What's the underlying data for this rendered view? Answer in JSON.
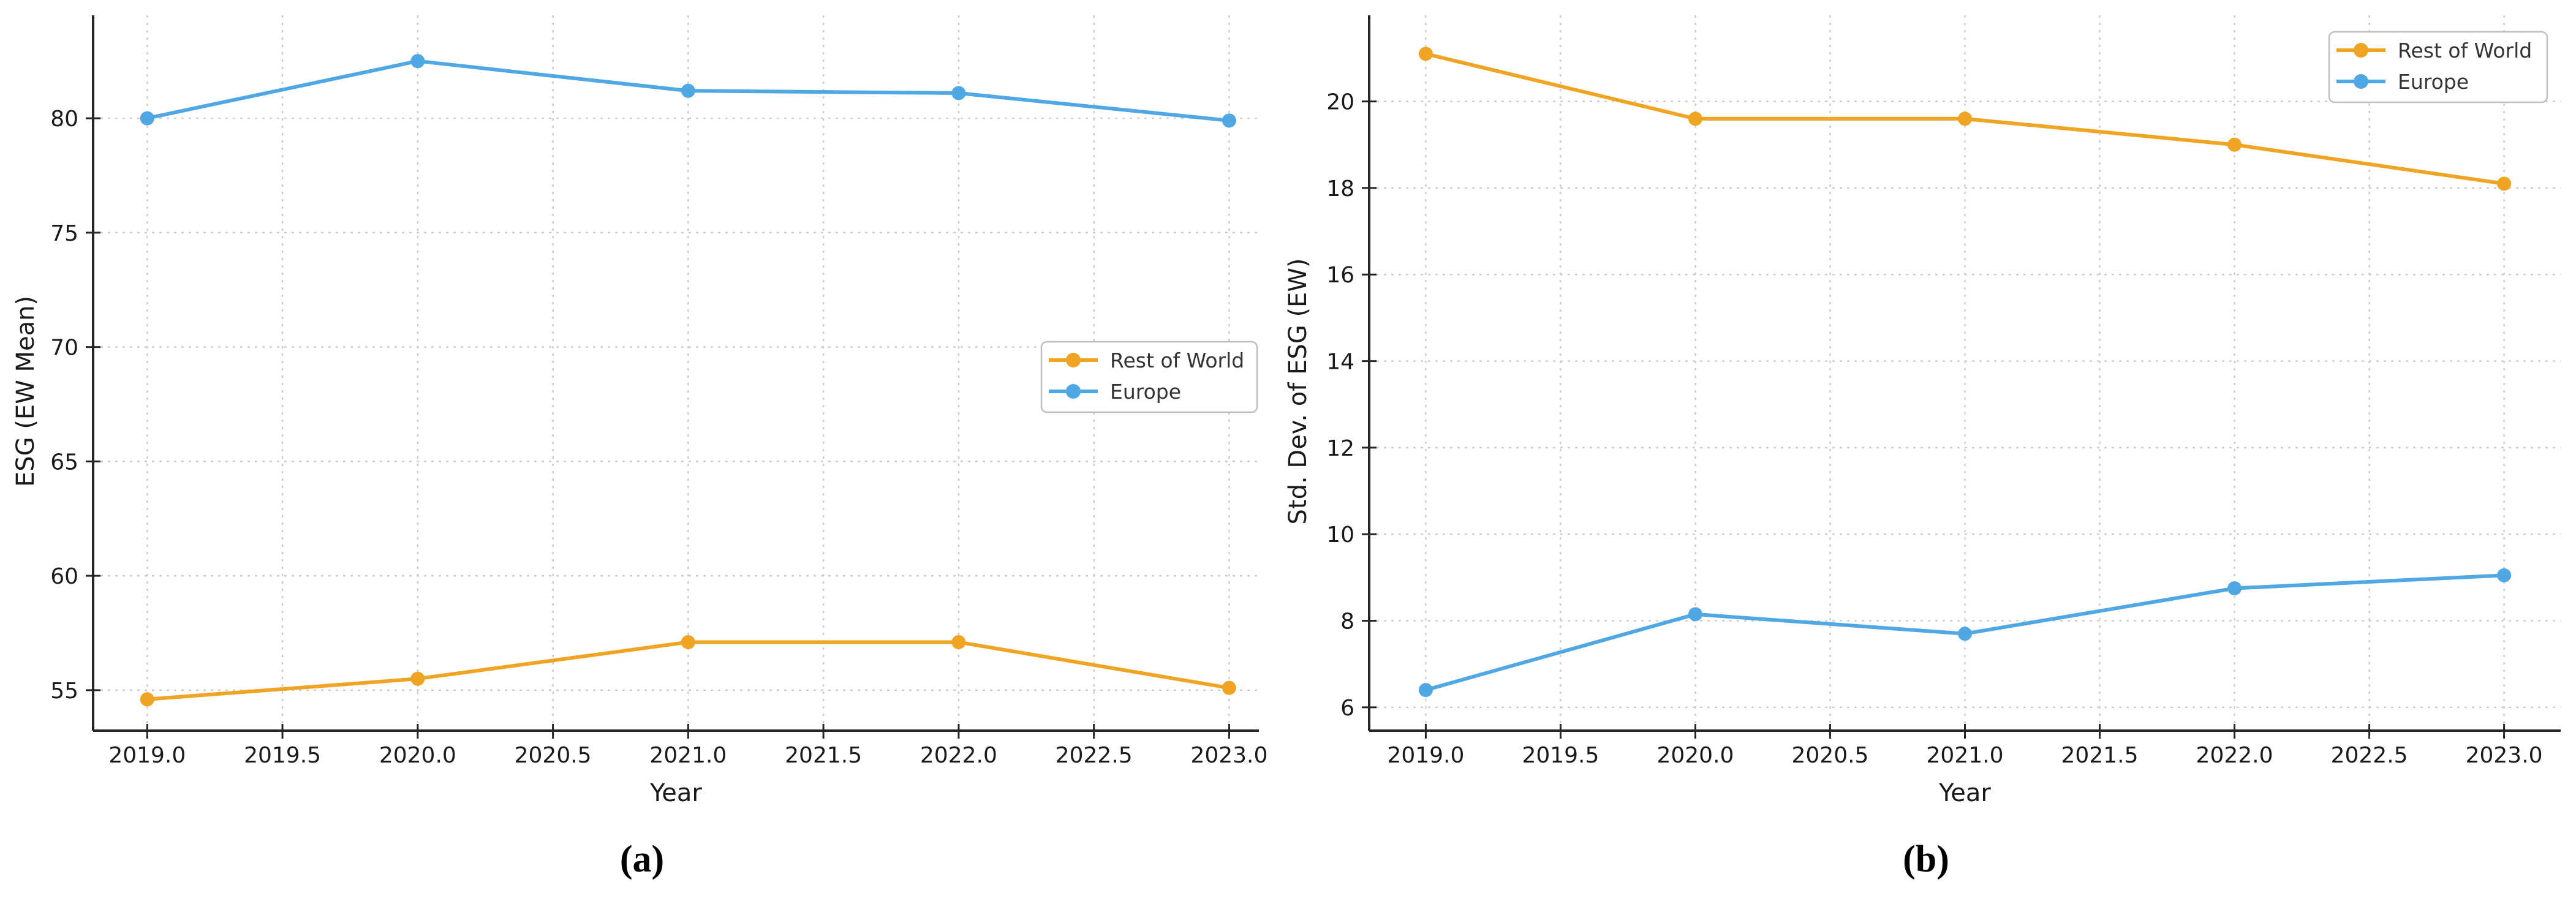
{
  "figure": {
    "background": "#ffffff",
    "captions": {
      "a": "(a)",
      "b": "(b)"
    }
  },
  "colors": {
    "rest_of_world": "#EFA423",
    "europe": "#4FA7E3",
    "grid": "#cccccc",
    "spine": "#262626",
    "tick_label": "#1a1a1a",
    "axis_label": "#1a1a1a",
    "legend_text": "#333333",
    "legend_border": "#bfbfbf",
    "legend_fill": "#ffffff"
  },
  "chart_data": [
    {
      "id": "a",
      "type": "line",
      "title": "",
      "xlabel": "Year",
      "ylabel": "ESG (EW Mean)",
      "caption": "(a)",
      "grid": true,
      "x": [
        2019,
        2020,
        2021,
        2022,
        2023
      ],
      "xticks": [
        2019.0,
        2019.5,
        2020.0,
        2020.5,
        2021.0,
        2021.5,
        2022.0,
        2022.5,
        2023.0
      ],
      "xtick_labels": [
        "2019.0",
        "2019.5",
        "2020.0",
        "2020.5",
        "2021.0",
        "2021.5",
        "2022.0",
        "2022.5",
        "2023.0"
      ],
      "yticks": [
        55,
        60,
        65,
        70,
        75,
        80
      ],
      "ytick_labels": [
        "55",
        "60",
        "65",
        "70",
        "75",
        "80"
      ],
      "xlim": [
        2018.8,
        2023.11
      ],
      "ylim": [
        53.23,
        84.5
      ],
      "legend": {
        "position": "center-right",
        "entries": [
          "Rest of World",
          "Europe"
        ]
      },
      "series": [
        {
          "name": "Rest of World",
          "color_key": "rest_of_world",
          "values": [
            54.6,
            55.5,
            57.1,
            57.1,
            55.1
          ]
        },
        {
          "name": "Europe",
          "color_key": "europe",
          "values": [
            80.0,
            82.5,
            81.2,
            81.1,
            79.9
          ]
        }
      ]
    },
    {
      "id": "b",
      "type": "line",
      "title": "",
      "xlabel": "Year",
      "ylabel": "Std. Dev. of ESG (EW)",
      "caption": "(b)",
      "grid": true,
      "x": [
        2019,
        2020,
        2021,
        2022,
        2023
      ],
      "xticks": [
        2019.0,
        2019.5,
        2020.0,
        2020.5,
        2021.0,
        2021.5,
        2022.0,
        2022.5,
        2023.0
      ],
      "xtick_labels": [
        "2019.0",
        "2019.5",
        "2020.0",
        "2020.5",
        "2021.0",
        "2021.5",
        "2022.0",
        "2022.5",
        "2023.0"
      ],
      "yticks": [
        6,
        8,
        10,
        12,
        14,
        16,
        18,
        20
      ],
      "ytick_labels": [
        "6",
        "8",
        "10",
        "12",
        "14",
        "16",
        "18",
        "20"
      ],
      "xlim": [
        2018.79,
        2023.21
      ],
      "ylim": [
        5.46,
        21.99
      ],
      "legend": {
        "position": "upper-right",
        "entries": [
          "Rest of World",
          "Europe"
        ]
      },
      "series": [
        {
          "name": "Rest of World",
          "color_key": "rest_of_world",
          "values": [
            21.1,
            19.6,
            19.6,
            19.0,
            18.1
          ]
        },
        {
          "name": "Europe",
          "color_key": "europe",
          "values": [
            6.4,
            8.15,
            7.7,
            8.75,
            9.05
          ]
        }
      ]
    }
  ]
}
